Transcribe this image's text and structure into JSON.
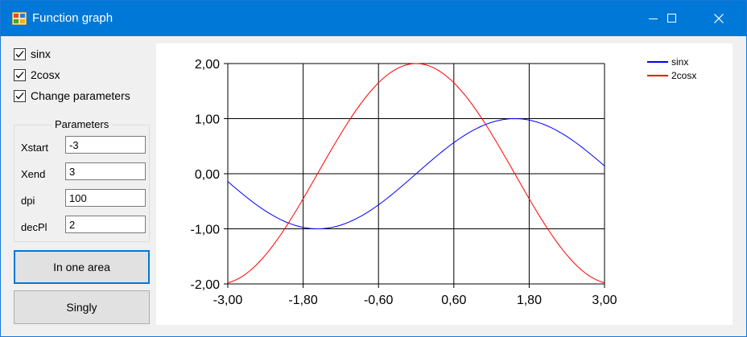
{
  "window": {
    "title": "Function graph",
    "controls": [
      "minimize-icon",
      "maximize-icon",
      "close-icon"
    ]
  },
  "options": {
    "sinx": {
      "label": "sinx",
      "checked": true
    },
    "cos": {
      "label": "2cosx",
      "checked": true
    },
    "change": {
      "label": "Change parameters",
      "checked": true
    }
  },
  "parameters": {
    "title": "Parameters",
    "xstart": {
      "label": "Xstart",
      "value": "-3"
    },
    "xend": {
      "label": "Xend",
      "value": "3"
    },
    "dpi": {
      "label": "dpi",
      "value": "100"
    },
    "decpl": {
      "label": "decPl",
      "value": "2"
    }
  },
  "buttons": {
    "one_area": "In one area",
    "singly": "Singly"
  },
  "chart_data": {
    "type": "line",
    "title": "",
    "xlabel": "",
    "ylabel": "",
    "xlim": [
      -3,
      3
    ],
    "ylim": [
      -2,
      2
    ],
    "x_ticks": [
      "-3,00",
      "-1,80",
      "-0,60",
      "0,60",
      "1,80",
      "3,00"
    ],
    "y_ticks": [
      "2,00",
      "1,00",
      "0,00",
      "-1,00",
      "-2,00"
    ],
    "grid": true,
    "legend_position": "top-right",
    "series": [
      {
        "name": "sinx",
        "color": "#0000ff",
        "function": "sin(x)",
        "x_start": -3,
        "x_end": 3,
        "points": 100
      },
      {
        "name": "2cosx",
        "color": "#ff0000",
        "function": "2*cos(x)",
        "x_start": -3,
        "x_end": 3,
        "points": 100
      }
    ]
  }
}
